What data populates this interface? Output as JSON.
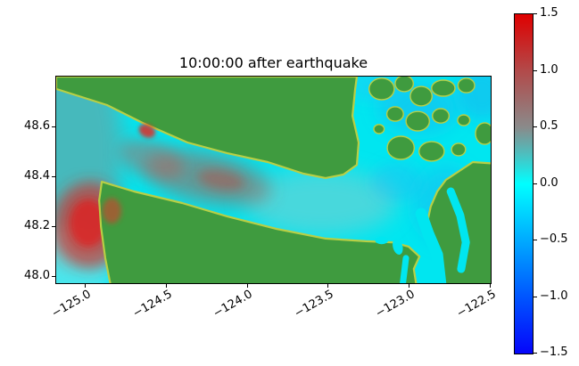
{
  "title": "10:00:00 after earthquake",
  "chart_data": {
    "type": "heatmap",
    "title": "10:00:00 after earthquake",
    "xlabel": "",
    "ylabel": "",
    "field_description": "Sea-surface elevation map 10:00:00 after earthquake over the Strait of Juan de Fuca region; positive wave (red, about +1) near the strait entrance around lon -124.9 lat 48.2 and along the strait, near-zero (cyan) open water, slightly negative (blue) in the eastern inland waters, green land masses",
    "xlim": [
      -125.176,
      -122.494
    ],
    "ylim": [
      47.971,
      48.8
    ],
    "x_ticks": [
      {
        "value": -125.0,
        "label": "−125.0"
      },
      {
        "value": -124.5,
        "label": "−124.5"
      },
      {
        "value": -124.0,
        "label": "−124.0"
      },
      {
        "value": -123.5,
        "label": "−123.5"
      },
      {
        "value": -123.0,
        "label": "−123.0"
      },
      {
        "value": -122.5,
        "label": "−122.5"
      }
    ],
    "y_ticks": [
      {
        "value": 48.0,
        "label": "48.0"
      },
      {
        "value": 48.2,
        "label": "48.2"
      },
      {
        "value": 48.4,
        "label": "48.4"
      },
      {
        "value": 48.6,
        "label": "48.6"
      }
    ],
    "colorbar": {
      "vmin": -1.5,
      "vmax": 1.5,
      "ticks": [
        {
          "value": 1.5,
          "label": "1.5"
        },
        {
          "value": 1.0,
          "label": "1.0"
        },
        {
          "value": 0.5,
          "label": "0.5"
        },
        {
          "value": 0.0,
          "label": "0.0"
        },
        {
          "value": -0.5,
          "label": "−0.5"
        },
        {
          "value": -1.0,
          "label": "−1.0"
        },
        {
          "value": -1.5,
          "label": "−1.5"
        }
      ],
      "gradient_stops": [
        {
          "pos": 0,
          "color": "#0505fa"
        },
        {
          "pos": 16.7,
          "color": "#0055ff"
        },
        {
          "pos": 33.3,
          "color": "#00aaff"
        },
        {
          "pos": 50,
          "color": "#00ffff"
        },
        {
          "pos": 58.3,
          "color": "#49c2c2"
        },
        {
          "pos": 66.7,
          "color": "#8a8a8a"
        },
        {
          "pos": 83.3,
          "color": "#b24a4a"
        },
        {
          "pos": 100,
          "color": "#df0000"
        }
      ]
    },
    "colors": {
      "land": "#3f9b3f",
      "water": "#00e6f0",
      "shore": "#b8cf45"
    },
    "land_polygons": [
      [
        [
          0,
          0
        ],
        [
          0.692,
          0
        ],
        [
          0.688,
          0.06
        ],
        [
          0.682,
          0.19
        ],
        [
          0.696,
          0.319
        ],
        [
          0.692,
          0.427
        ],
        [
          0.661,
          0.474
        ],
        [
          0.62,
          0.491
        ],
        [
          0.569,
          0.47
        ],
        [
          0.487,
          0.414
        ],
        [
          0.394,
          0.371
        ],
        [
          0.302,
          0.319
        ],
        [
          0.199,
          0.224
        ],
        [
          0.117,
          0.138
        ],
        [
          0,
          0.06
        ]
      ],
      [
        [
          0.129,
          1.05
        ],
        [
          0.113,
          0.879
        ],
        [
          0.103,
          0.728
        ],
        [
          0.099,
          0.599
        ],
        [
          0.105,
          0.509
        ],
        [
          0.179,
          0.556
        ],
        [
          0.29,
          0.612
        ],
        [
          0.394,
          0.677
        ],
        [
          0.507,
          0.737
        ],
        [
          0.62,
          0.784
        ],
        [
          0.713,
          0.797
        ],
        [
          0.774,
          0.802
        ],
        [
          0.811,
          0.823
        ],
        [
          0.836,
          0.871
        ],
        [
          0.823,
          0.931
        ],
        [
          0.832,
          1.05
        ]
      ],
      [
        [
          1.05,
          0.427
        ],
        [
          0.959,
          0.414
        ],
        [
          0.928,
          0.457
        ],
        [
          0.897,
          0.5
        ],
        [
          0.877,
          0.556
        ],
        [
          0.862,
          0.629
        ],
        [
          0.852,
          0.728
        ],
        [
          0.877,
          0.836
        ],
        [
          0.873,
          0.922
        ],
        [
          0.881,
          1.05
        ],
        [
          1.05,
          1.05
        ]
      ]
    ],
    "islands": [
      [
        0.749,
        0.06,
        0.029,
        0.052
      ],
      [
        0.801,
        0.034,
        0.021,
        0.039
      ],
      [
        0.84,
        0.095,
        0.025,
        0.047
      ],
      [
        0.891,
        0.056,
        0.027,
        0.039
      ],
      [
        0.944,
        0.043,
        0.019,
        0.035
      ],
      [
        0.78,
        0.181,
        0.019,
        0.035
      ],
      [
        0.832,
        0.216,
        0.027,
        0.047
      ],
      [
        0.885,
        0.19,
        0.019,
        0.035
      ],
      [
        0.793,
        0.345,
        0.031,
        0.056
      ],
      [
        0.864,
        0.362,
        0.029,
        0.047
      ],
      [
        0.926,
        0.353,
        0.016,
        0.03
      ],
      [
        0.986,
        0.276,
        0.021,
        0.052
      ],
      [
        0.743,
        0.254,
        0.012,
        0.022
      ],
      [
        0.938,
        0.211,
        0.014,
        0.026
      ]
    ],
    "channels": [
      {
        "pts": [
          [
            0.84,
            0.664
          ],
          [
            0.856,
            0.759
          ],
          [
            0.877,
            0.862
          ],
          [
            0.887,
            1.05
          ]
        ],
        "width": 13
      },
      {
        "pts": [
          [
            0.908,
            0.556
          ],
          [
            0.93,
            0.672
          ],
          [
            0.943,
            0.802
          ],
          [
            0.932,
            0.931
          ]
        ],
        "width": 9
      },
      {
        "pts": [
          [
            0.805,
            0.879
          ],
          [
            0.795,
            1.05
          ]
        ],
        "width": 7
      }
    ],
    "water_patches": [
      {
        "cx": 0.786,
        "cy": 0.823,
        "rx": 0.011,
        "ry": 0.04,
        "rot": -15
      },
      {
        "cx": 0.749,
        "cy": 0.793,
        "rx": 0.015,
        "ry": 0.018,
        "rot": 0
      }
    ],
    "water_field": [
      {
        "cx": 0.025,
        "cy": 0.36,
        "rx": 0.13,
        "ry": 0.55,
        "rot": 0,
        "color": "rgba(128,148,146,0.55)",
        "blur": 12
      },
      {
        "cx": 0.03,
        "cy": 0.92,
        "rx": 0.1,
        "ry": 0.2,
        "rot": 0,
        "color": "rgba(205,232,232,0.35)",
        "blur": 8
      },
      {
        "cx": 0.61,
        "cy": 0.61,
        "rx": 0.175,
        "ry": 0.16,
        "rot": 0,
        "color": "rgba(172,196,194,0.42)",
        "blur": 12
      },
      {
        "cx": 0.347,
        "cy": 0.49,
        "rx": 0.15,
        "ry": 0.12,
        "rot": 12,
        "color": "rgba(186,82,72,0.50)",
        "blur": 10
      },
      {
        "cx": 0.22,
        "cy": 0.4,
        "rx": 0.078,
        "ry": 0.085,
        "rot": 20,
        "color": "rgba(186,96,86,0.45)",
        "blur": 8
      },
      {
        "cx": 0.38,
        "cy": 0.5,
        "rx": 0.056,
        "ry": 0.05,
        "rot": 10,
        "color": "rgba(196,62,56,0.45)",
        "blur": 6
      },
      {
        "cx": 0.078,
        "cy": 0.72,
        "rx": 0.085,
        "ry": 0.21,
        "rot": 0,
        "color": "rgba(206,50,46,0.72)",
        "blur": 8
      },
      {
        "cx": 0.074,
        "cy": 0.71,
        "rx": 0.043,
        "ry": 0.115,
        "rot": 0,
        "color": "rgba(222,32,30,0.78)",
        "blur": 4
      },
      {
        "cx": 0.836,
        "cy": 0.15,
        "rx": 0.095,
        "ry": 0.125,
        "rot": 0,
        "color": "rgba(45,150,240,0.30)",
        "blur": 10
      },
      {
        "cx": 0.897,
        "cy": 0.62,
        "rx": 0.075,
        "ry": 0.19,
        "rot": 0,
        "color": "rgba(45,150,240,0.28)",
        "blur": 10
      },
      {
        "cx": 0.784,
        "cy": 0.51,
        "rx": 0.06,
        "ry": 0.095,
        "rot": 0,
        "color": "rgba(60,160,245,0.25)",
        "blur": 8
      },
      {
        "cx": 0.98,
        "cy": 0.08,
        "rx": 0.055,
        "ry": 0.13,
        "rot": 0,
        "color": "rgba(45,140,240,0.30)",
        "blur": 8
      },
      {
        "cx": 0.733,
        "cy": 0.04,
        "rx": 0.065,
        "ry": 0.08,
        "rot": 0,
        "color": "rgba(70,170,245,0.22)",
        "blur": 8
      }
    ],
    "water_field_over": [
      {
        "cx": 0.209,
        "cy": 0.263,
        "rx": 0.02,
        "ry": 0.03,
        "rot": 25,
        "color": "rgba(225,42,36,0.85)",
        "blur": 2
      },
      {
        "cx": 0.128,
        "cy": 0.65,
        "rx": 0.022,
        "ry": 0.062,
        "rot": 0,
        "color": "rgba(214,62,46,0.60)",
        "blur": 3
      }
    ]
  }
}
